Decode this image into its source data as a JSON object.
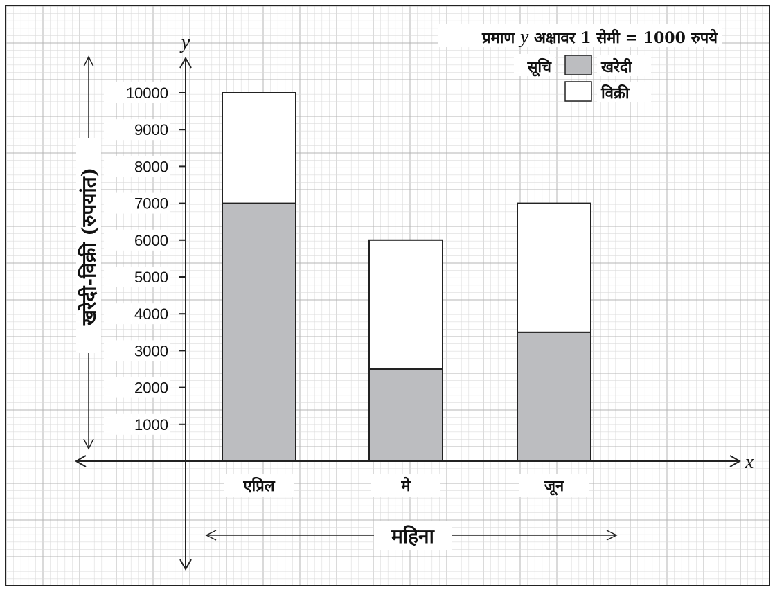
{
  "chart_data": {
    "type": "bar",
    "stacked": true,
    "categories": [
      "एप्रिल",
      "मे",
      "जून"
    ],
    "series": [
      {
        "name": "खरेदी",
        "values": [
          7000,
          2500,
          3500
        ],
        "color": "#bcbdc0"
      },
      {
        "name": "विक्री",
        "values": [
          3000,
          3500,
          3500
        ],
        "color": "#ffffff"
      }
    ],
    "yticks": [
      1000,
      2000,
      3000,
      4000,
      5000,
      6000,
      7000,
      8000,
      9000,
      10000
    ],
    "ylim": [
      0,
      10000
    ],
    "xlabel": "महिना",
    "ylabel": "खरेदी-विक्री (रुपयांत)",
    "x_axis_letter": "x",
    "y_axis_letter": "y",
    "grid": true,
    "legend_placement": "top-right",
    "legend_title": "सूचि",
    "scale_note": {
      "prefix": "प्रमाण",
      "axis": "y",
      "text": "अक्षावर 1 सेमी = 1000 रुपये"
    }
  },
  "colors": {
    "grid_minor": "#dcdcdc",
    "grid_major": "#b4b4b4",
    "axis": "#222222",
    "bar_outline": "#222222"
  }
}
